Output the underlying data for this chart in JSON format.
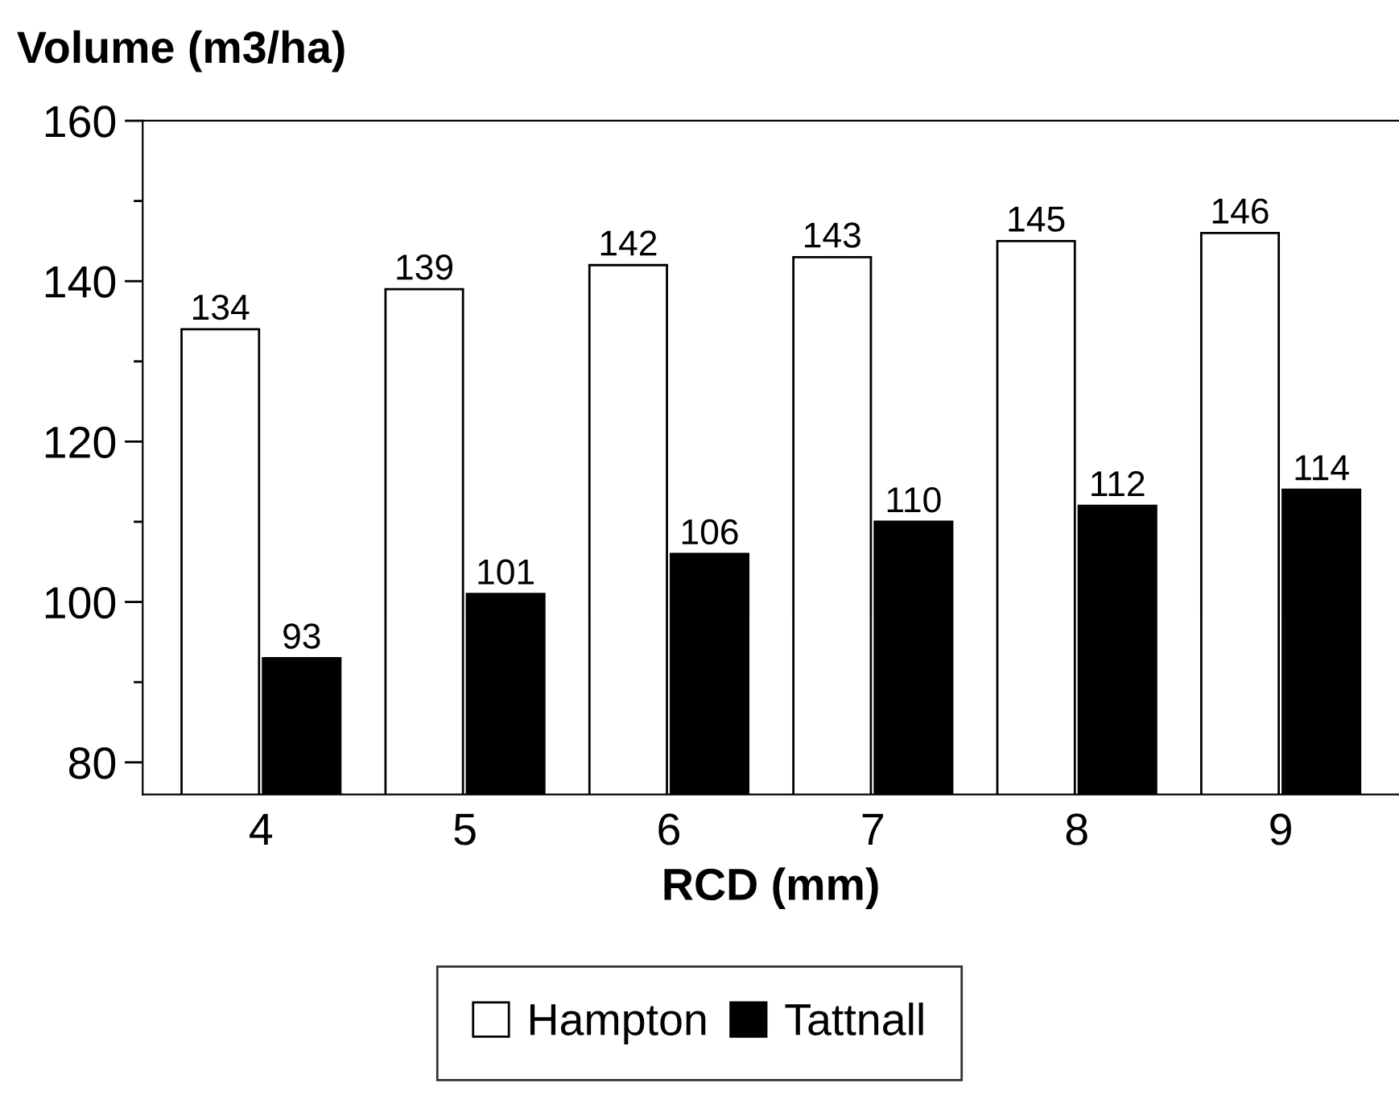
{
  "chart_data": {
    "type": "bar",
    "ylabel": "Volume (m3/ha)",
    "xlabel": "RCD (mm)",
    "categories": [
      "4",
      "5",
      "6",
      "7",
      "8",
      "9"
    ],
    "series": [
      {
        "name": "Hampton",
        "color": "#ffffff",
        "values": [
          134,
          139,
          142,
          143,
          145,
          146
        ]
      },
      {
        "name": "Tattnall",
        "color": "#000000",
        "values": [
          93,
          101,
          106,
          110,
          112,
          114
        ]
      }
    ],
    "ylim": [
      76,
      160
    ],
    "yticks": [
      80,
      {
        "value": 90,
        "label": null
      },
      100,
      {
        "value": 110,
        "label": null
      },
      120,
      {
        "value": 130,
        "label": null
      },
      140,
      {
        "value": 150,
        "label": null
      },
      160
    ],
    "data_labels": true,
    "grid": false,
    "legend": "bottom"
  }
}
